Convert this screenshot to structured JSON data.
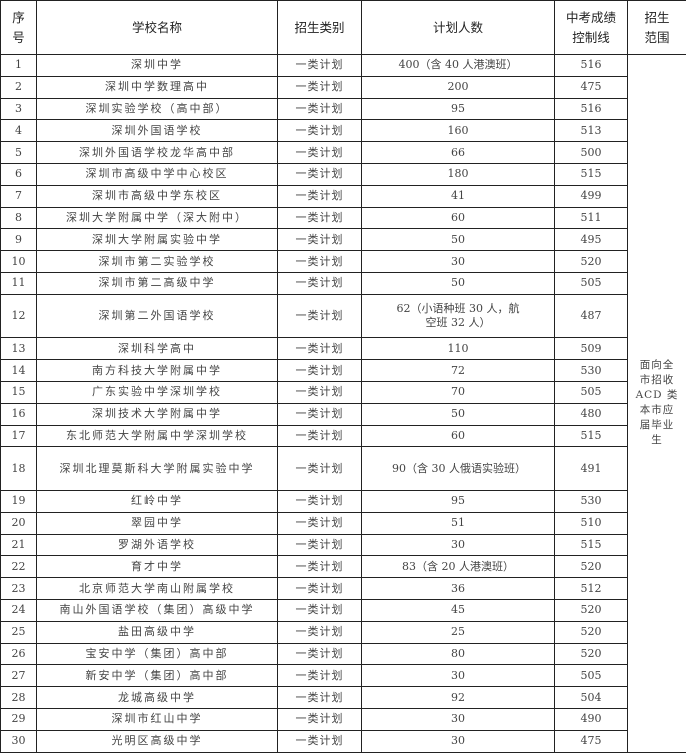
{
  "headers": {
    "no": "序号",
    "school": "学校名称",
    "category": "招生类别",
    "plan": "计划人数",
    "score": "中考成绩控制线",
    "scope": "招生范围"
  },
  "scope_text": "面向全市招收ACD 类本市应届毕业生",
  "rows": [
    {
      "no": "1",
      "school": "深圳中学",
      "category": "一类计划",
      "plan": "400（含 40 人港澳班）",
      "score": "516"
    },
    {
      "no": "2",
      "school": "深圳中学数理高中",
      "category": "一类计划",
      "plan": "200",
      "score": "475"
    },
    {
      "no": "3",
      "school": "深圳实验学校（高中部）",
      "category": "一类计划",
      "plan": "95",
      "score": "516"
    },
    {
      "no": "4",
      "school": "深圳外国语学校",
      "category": "一类计划",
      "plan": "160",
      "score": "513"
    },
    {
      "no": "5",
      "school": "深圳外国语学校龙华高中部",
      "category": "一类计划",
      "plan": "66",
      "score": "500"
    },
    {
      "no": "6",
      "school": "深圳市高级中学中心校区",
      "category": "一类计划",
      "plan": "180",
      "score": "515"
    },
    {
      "no": "7",
      "school": "深圳市高级中学东校区",
      "category": "一类计划",
      "plan": "41",
      "score": "499"
    },
    {
      "no": "8",
      "school": "深圳大学附属中学（深大附中）",
      "category": "一类计划",
      "plan": "60",
      "score": "511"
    },
    {
      "no": "9",
      "school": "深圳大学附属实验中学",
      "category": "一类计划",
      "plan": "50",
      "score": "495"
    },
    {
      "no": "10",
      "school": "深圳市第二实验学校",
      "category": "一类计划",
      "plan": "30",
      "score": "520"
    },
    {
      "no": "11",
      "school": "深圳市第二高级中学",
      "category": "一类计划",
      "plan": "50",
      "score": "505"
    },
    {
      "no": "12",
      "school": "深圳第二外国语学校",
      "category": "一类计划",
      "plan": "62（小语种班 30 人，航空班 32 人）",
      "score": "487",
      "tall": true
    },
    {
      "no": "13",
      "school": "深圳科学高中",
      "category": "一类计划",
      "plan": "110",
      "score": "509"
    },
    {
      "no": "14",
      "school": "南方科技大学附属中学",
      "category": "一类计划",
      "plan": "72",
      "score": "530"
    },
    {
      "no": "15",
      "school": "广东实验中学深圳学校",
      "category": "一类计划",
      "plan": "70",
      "score": "505"
    },
    {
      "no": "16",
      "school": "深圳技术大学附属中学",
      "category": "一类计划",
      "plan": "50",
      "score": "480"
    },
    {
      "no": "17",
      "school": "东北师范大学附属中学深圳学校",
      "category": "一类计划",
      "plan": "60",
      "score": "515"
    },
    {
      "no": "18",
      "school": "深圳北理莫斯科大学附属实验中学",
      "category": "一类计划",
      "plan": "90（含 30 人俄语实验班）",
      "score": "491",
      "tall": true
    },
    {
      "no": "19",
      "school": "红岭中学",
      "category": "一类计划",
      "plan": "95",
      "score": "530"
    },
    {
      "no": "20",
      "school": "翠园中学",
      "category": "一类计划",
      "plan": "51",
      "score": "510"
    },
    {
      "no": "21",
      "school": "罗湖外语学校",
      "category": "一类计划",
      "plan": "30",
      "score": "515"
    },
    {
      "no": "22",
      "school": "育才中学",
      "category": "一类计划",
      "plan": "83（含 20 人港澳班）",
      "score": "520"
    },
    {
      "no": "23",
      "school": "北京师范大学南山附属学校",
      "category": "一类计划",
      "plan": "36",
      "score": "512"
    },
    {
      "no": "24",
      "school": "南山外国语学校（集团）高级中学",
      "category": "一类计划",
      "plan": "45",
      "score": "520"
    },
    {
      "no": "25",
      "school": "盐田高级中学",
      "category": "一类计划",
      "plan": "25",
      "score": "520"
    },
    {
      "no": "26",
      "school": "宝安中学（集团）高中部",
      "category": "一类计划",
      "plan": "80",
      "score": "520"
    },
    {
      "no": "27",
      "school": "新安中学（集团）高中部",
      "category": "一类计划",
      "plan": "30",
      "score": "505"
    },
    {
      "no": "28",
      "school": "龙城高级中学",
      "category": "一类计划",
      "plan": "92",
      "score": "504"
    },
    {
      "no": "29",
      "school": "深圳市红山中学",
      "category": "一类计划",
      "plan": "30",
      "score": "490"
    },
    {
      "no": "30",
      "school": "光明区高级中学",
      "category": "一类计划",
      "plan": "30",
      "score": "475"
    }
  ]
}
